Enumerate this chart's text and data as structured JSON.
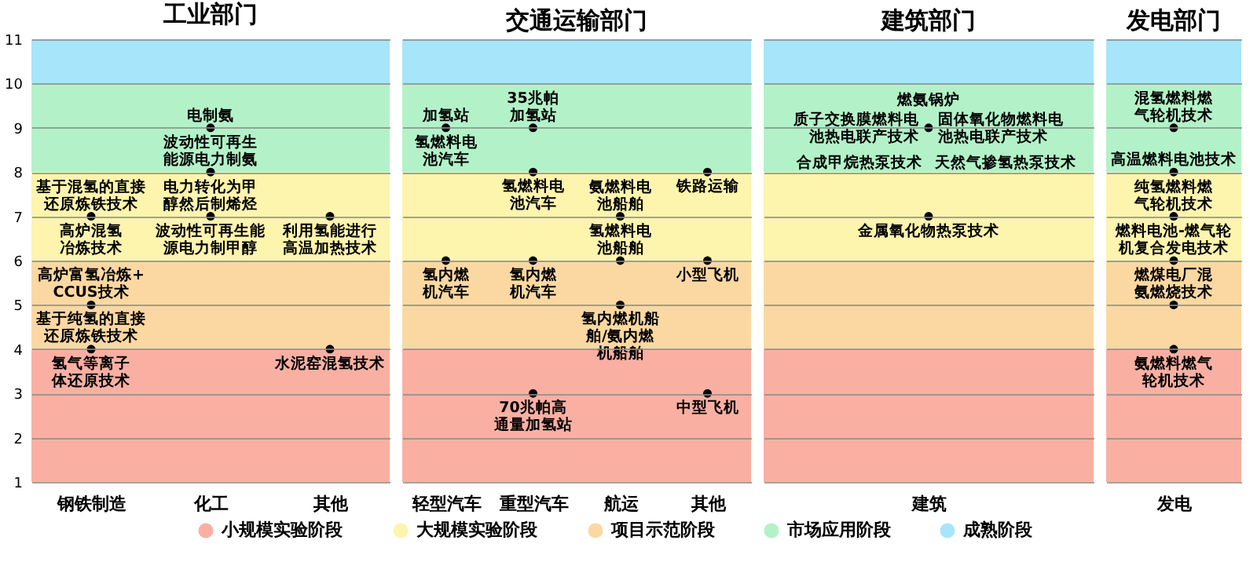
{
  "chart_data": [
    {
      "type": "scatter",
      "title": "工业部门",
      "categories": [
        "钢铁制造",
        "化工",
        "其他"
      ],
      "ylim": [
        1,
        11
      ],
      "yticks": [
        1,
        2,
        3,
        4,
        5,
        6,
        7,
        8,
        9,
        10,
        11
      ],
      "grid": "y",
      "marker": "circle",
      "legend": "bottom",
      "series": [
        {
          "x": [
            "钢铁制造",
            "钢铁制造",
            "钢铁制造",
            "化工",
            "化工",
            "化工",
            "其他",
            "其他"
          ],
          "values": [
            7,
            5,
            4,
            9,
            8,
            7,
            7,
            4
          ],
          "color": "#000000"
        }
      ],
      "bands": [
        {
          "axis": "y",
          "from": 1,
          "to": 4,
          "label": "小规模实验阶段",
          "color": "#f9b0a2"
        },
        {
          "axis": "y",
          "from": 6,
          "to": 8,
          "label": "大规模实验阶段",
          "color": "#fdf4ad"
        },
        {
          "axis": "y",
          "from": 4,
          "to": 6,
          "label": "项目示范阶段",
          "color": "#fbd8a1"
        },
        {
          "axis": "y",
          "from": 8,
          "to": 10,
          "label": "市场应用阶段",
          "color": "#b3f2c8"
        },
        {
          "axis": "y",
          "from": 10,
          "to": 11,
          "label": "成熟阶段",
          "color": "#a6e5fa"
        }
      ],
      "annotations": [
        {
          "text": "基于混氢的直接还原炼铁技术",
          "x": "钢铁制造",
          "y": 7
        },
        {
          "text": "高炉混氢冶炼技术",
          "x": "钢铁制造",
          "y": 7
        },
        {
          "text": "高炉富氢冶炼+CCUS技术",
          "x": "钢铁制造",
          "y": 5
        },
        {
          "text": "基于纯氢的直接还原炼铁技术",
          "x": "钢铁制造",
          "y": 5
        },
        {
          "text": "氢气等离子体还原技术",
          "x": "钢铁制造",
          "y": 4
        },
        {
          "text": "电制氨",
          "x": "化工",
          "y": 9
        },
        {
          "text": "波动性可再生能源电力制氨",
          "x": "化工",
          "y": 8
        },
        {
          "text": "电力转化为甲醇然后制烯烃",
          "x": "化工",
          "y": 7
        },
        {
          "text": "波动性可再生能源电力制甲醇",
          "x": "化工",
          "y": 7
        },
        {
          "text": "利用氢能进行高温加热技术",
          "x": "其他",
          "y": 7
        },
        {
          "text": "水泥窑混氢技术",
          "x": "其他",
          "y": 4
        }
      ]
    },
    {
      "type": "scatter",
      "title": "交通运输部门",
      "categories": [
        "轻型汽车",
        "重型汽车",
        "航运",
        "其他"
      ],
      "ylim": [
        1,
        11
      ],
      "yticks": [
        1,
        2,
        3,
        4,
        5,
        6,
        7,
        8,
        9,
        10,
        11
      ],
      "grid": "y",
      "marker": "circle",
      "tick_labels": "x",
      "series": [
        {
          "x": [
            "轻型汽车",
            "轻型汽车",
            "重型汽车",
            "重型汽车",
            "重型汽车",
            "重型汽车",
            "航运",
            "航运",
            "航运",
            "其他",
            "其他",
            "其他"
          ],
          "values": [
            9,
            6,
            9,
            8,
            6,
            3,
            7,
            6,
            5,
            8,
            6,
            3
          ],
          "color": "#000000"
        }
      ],
      "bands": [
        {
          "axis": "y",
          "from": 1,
          "to": 4,
          "color": "#f9b0a2"
        },
        {
          "axis": "y",
          "from": 6,
          "to": 8,
          "color": "#fdf4ad"
        },
        {
          "axis": "y",
          "from": 4,
          "to": 6,
          "color": "#fbd8a1"
        },
        {
          "axis": "y",
          "from": 8,
          "to": 10,
          "color": "#b3f2c8"
        },
        {
          "axis": "y",
          "from": 10,
          "to": 11,
          "color": "#a6e5fa"
        }
      ],
      "annotations": [
        {
          "text": "加氢站",
          "x": "轻型汽车",
          "y": 9
        },
        {
          "text": "氢燃料电池汽车",
          "x": "轻型汽车",
          "y": 9
        },
        {
          "text": "氢内燃机汽车",
          "x": "轻型汽车",
          "y": 6
        },
        {
          "text": "35兆帕加氢站",
          "x": "重型汽车",
          "y": 9
        },
        {
          "text": "氢燃料电池汽车",
          "x": "重型汽车",
          "y": 8
        },
        {
          "text": "氢内燃机汽车",
          "x": "重型汽车",
          "y": 6
        },
        {
          "text": "70兆帕高通量加氢站",
          "x": "重型汽车",
          "y": 3
        },
        {
          "text": "氨燃料电池船舶",
          "x": "航运",
          "y": 7
        },
        {
          "text": "氢燃料电池船舶",
          "x": "航运",
          "y": 6
        },
        {
          "text": "氢内燃机船舶/氨内燃机船舶",
          "x": "航运",
          "y": 5
        },
        {
          "text": "铁路运输",
          "x": "其他",
          "y": 8
        },
        {
          "text": "小型飞机",
          "x": "其他",
          "y": 6
        },
        {
          "text": "中型飞机",
          "x": "其他",
          "y": 3
        }
      ]
    },
    {
      "type": "scatter",
      "title": "建筑部门",
      "categories": [
        "建筑"
      ],
      "ylim": [
        1,
        11
      ],
      "yticks": [
        1,
        2,
        3,
        4,
        5,
        6,
        7,
        8,
        9,
        10,
        11
      ],
      "grid": "y",
      "marker": "circle",
      "tick_labels": "x",
      "series": [
        {
          "x": [
            "建筑",
            "建筑"
          ],
          "values": [
            9,
            7
          ],
          "color": "#000000"
        }
      ],
      "bands": [
        {
          "axis": "y",
          "from": 1,
          "to": 4,
          "color": "#f9b0a2"
        },
        {
          "axis": "y",
          "from": 6,
          "to": 8,
          "color": "#fdf4ad"
        },
        {
          "axis": "y",
          "from": 4,
          "to": 6,
          "color": "#fbd8a1"
        },
        {
          "axis": "y",
          "from": 8,
          "to": 10,
          "color": "#b3f2c8"
        },
        {
          "axis": "y",
          "from": 10,
          "to": 11,
          "color": "#a6e5fa"
        }
      ],
      "annotations": [
        {
          "text": "燃氨锅炉",
          "x": "建筑",
          "y": 9
        },
        {
          "text": "质子交换膜燃料电池热电联产技术",
          "x": "建筑",
          "y": 9
        },
        {
          "text": "固体氧化物燃料电池热电联产技术",
          "x": "建筑",
          "y": 9
        },
        {
          "text": "合成甲烷热泵技术",
          "x": "建筑",
          "y": 9
        },
        {
          "text": "天然气掺氢热泵技术",
          "x": "建筑",
          "y": 9
        },
        {
          "text": "金属氧化物热泵技术",
          "x": "建筑",
          "y": 7
        }
      ]
    },
    {
      "type": "scatter",
      "title": "发电部门",
      "categories": [
        "发电"
      ],
      "ylim": [
        1,
        11
      ],
      "yticks": [
        1,
        2,
        3,
        4,
        5,
        6,
        7,
        8,
        9,
        10,
        11
      ],
      "grid": "y",
      "marker": "circle",
      "tick_labels": "x",
      "series": [
        {
          "x": [
            "发电",
            "发电",
            "发电",
            "发电",
            "发电",
            "发电"
          ],
          "values": [
            9,
            8,
            7,
            6,
            5,
            4
          ],
          "color": "#000000"
        }
      ],
      "bands": [
        {
          "axis": "y",
          "from": 1,
          "to": 4,
          "color": "#f9b0a2"
        },
        {
          "axis": "y",
          "from": 6,
          "to": 8,
          "color": "#fdf4ad"
        },
        {
          "axis": "y",
          "from": 4,
          "to": 6,
          "color": "#fbd8a1"
        },
        {
          "axis": "y",
          "from": 8,
          "to": 10,
          "color": "#b3f2c8"
        },
        {
          "axis": "y",
          "from": 10,
          "to": 11,
          "color": "#a6e5fa"
        }
      ],
      "annotations": [
        {
          "text": "混氢燃料燃气轮机技术",
          "x": "发电",
          "y": 9
        },
        {
          "text": "高温燃料电池技术",
          "x": "发电",
          "y": 8
        },
        {
          "text": "纯氢燃料燃气轮机技术",
          "x": "发电",
          "y": 7
        },
        {
          "text": "燃料电池-燃气轮机复合发电技术",
          "x": "发电",
          "y": 6
        },
        {
          "text": "燃煤电厂混氨燃烧技术",
          "x": "发电",
          "y": 5
        },
        {
          "text": "氨燃料燃气轮机技术",
          "x": "发电",
          "y": 4
        }
      ]
    }
  ]
}
